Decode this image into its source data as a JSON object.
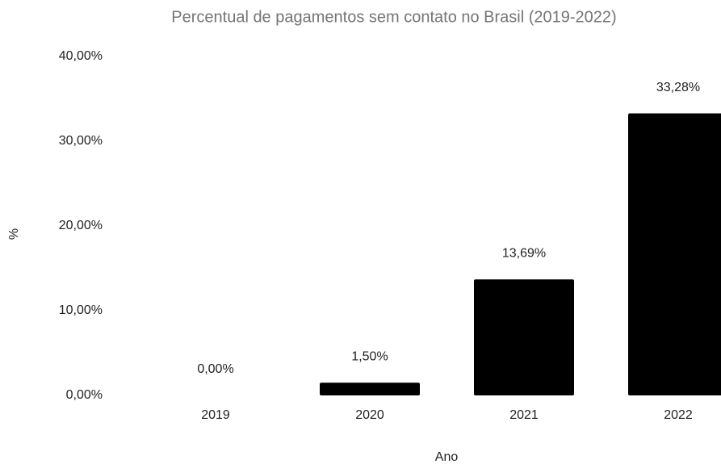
{
  "chart_data": {
    "type": "bar",
    "title": "Percentual de pagamentos sem contato no Brasil (2019-2022)",
    "x_label": "Ano",
    "y_label": "%",
    "categories": [
      "2019",
      "2020",
      "2021",
      "2022"
    ],
    "values": [
      0,
      1.5,
      13.69,
      33.28
    ],
    "value_labels": [
      "0,00%",
      "1,50%",
      "13,69%",
      "33,28%"
    ],
    "color": "#000000",
    "ylim": [
      0,
      40
    ],
    "yticks": [
      {
        "value": 0,
        "label": "0,00%"
      },
      {
        "value": 10,
        "label": "10,00%"
      },
      {
        "value": 20,
        "label": "20,00%"
      },
      {
        "value": 30,
        "label": "30,00%"
      },
      {
        "value": 40,
        "label": "40,00%"
      }
    ],
    "grid": false
  }
}
